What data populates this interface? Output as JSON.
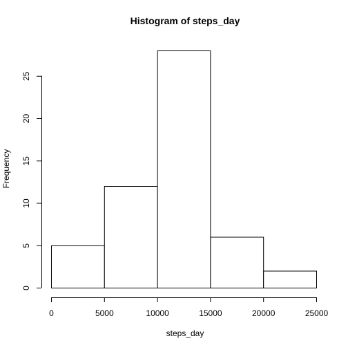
{
  "chart_data": {
    "type": "bar",
    "title": "Histogram of steps_day",
    "xlabel": "steps_day",
    "ylabel": "Frequency",
    "bins": [
      {
        "start": 0,
        "end": 5000,
        "count": 5
      },
      {
        "start": 5000,
        "end": 10000,
        "count": 12
      },
      {
        "start": 10000,
        "end": 15000,
        "count": 28
      },
      {
        "start": 15000,
        "end": 20000,
        "count": 6
      },
      {
        "start": 20000,
        "end": 25000,
        "count": 2
      }
    ],
    "xlim": [
      0,
      25000
    ],
    "ylim": [
      0,
      28
    ],
    "xticks": [
      0,
      5000,
      10000,
      15000,
      20000,
      25000
    ],
    "yticks": [
      0,
      5,
      10,
      15,
      20,
      25
    ],
    "bar_fill": "#ffffff",
    "bar_stroke": "#000000",
    "grid": false,
    "legend": "none"
  }
}
